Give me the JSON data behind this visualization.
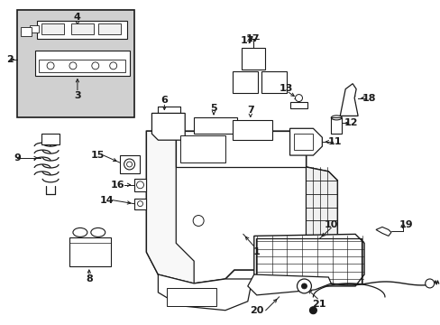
{
  "bg_color": "#ffffff",
  "line_color": "#1a1a1a",
  "inset_bg": "#d0d0d0",
  "fig_width": 4.89,
  "fig_height": 3.6,
  "dpi": 100
}
